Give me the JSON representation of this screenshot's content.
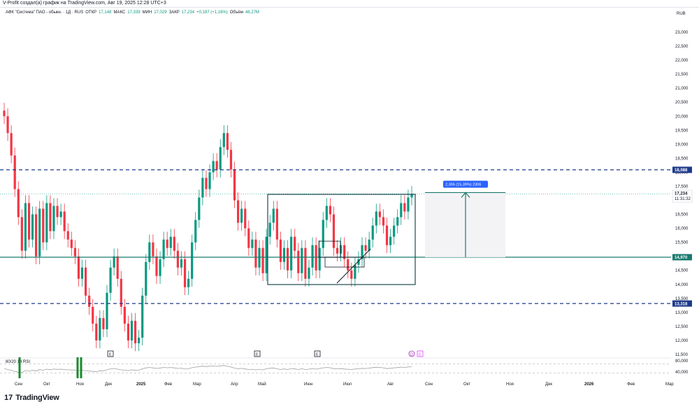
{
  "caption": "V-Profit создал(а) график на TradingView.com, Авг 19, 2025 12:28 UTC+3",
  "header": {
    "symbol": "АФК \"Система\" ПАО - обыкн. · 1Д · RUS",
    "open_label": "ОТКР",
    "open": "17,148",
    "high_label": "МАКС",
    "high": "17,339",
    "low_label": "МИН",
    "low": "17,029",
    "close_label": "ЗАКР",
    "close": "17,234",
    "change": "+0,197 (+1,16%)",
    "volume_label": "Объём",
    "volume": "48,27M"
  },
  "currency": "RUB",
  "rsi_label": "80/20 14 RSI",
  "footer": {
    "logo": "17",
    "brand": "TradingView"
  },
  "colors": {
    "up": "#089981",
    "down": "#f23645",
    "level": "#1e3a8a",
    "box": "#1d4a4f",
    "measure": "#2962ff"
  },
  "chart_data": {
    "type": "candlestick",
    "y_ticks": [
      "23,000",
      "22,500",
      "22,000",
      "21,500",
      "21,000",
      "20,500",
      "20,000",
      "19,500",
      "19,000",
      "18,500",
      "18,000",
      "17,500",
      "17,000",
      "16,500",
      "16,000",
      "15,500",
      "15,000",
      "14,500",
      "14,000",
      "13,500",
      "13,000",
      "12,500",
      "12,000",
      "11,500"
    ],
    "x_ticks": [
      "Сен",
      "Окт",
      "Ноя",
      "Дек",
      "2025",
      "Фев",
      "Мар",
      "Апр",
      "Май",
      "Июн",
      "Июл",
      "Авг",
      "Сен",
      "Окт",
      "Ноя",
      "Дек",
      "2026",
      "Фев",
      "Мар"
    ],
    "ylim": [
      11.5,
      23.5
    ],
    "levels": [
      {
        "label": "18,088",
        "value": 18.088,
        "style": "dashed"
      },
      {
        "label": "13,318",
        "value": 13.318,
        "style": "dashed"
      },
      {
        "label": "14,970",
        "value": 14.97,
        "style": "solid"
      }
    ],
    "last_price": {
      "label": "17,234",
      "countdown": "11:31:32",
      "value": 17.234
    },
    "measure_label": "2,306 (15,39%) 2306",
    "event_markers": [
      "E",
      "E",
      "E"
    ],
    "dividend_markers": [
      "D",
      "E"
    ],
    "rsi_ticks": [
      "80,000",
      "40,000"
    ],
    "closes": [
      20.0,
      19.4,
      18.6,
      17.4,
      16.4,
      15.2,
      16.9,
      15.6,
      16.5,
      15.0,
      16.7,
      15.5,
      16.9,
      15.9,
      16.8,
      16.4,
      16.6,
      15.9,
      15.6,
      15.3,
      15.0,
      14.2,
      14.6,
      13.6,
      13.2,
      12.6,
      12.0,
      12.8,
      12.4,
      13.7,
      14.6,
      15.0,
      14.2,
      13.2,
      12.6,
      12.0,
      12.7,
      11.9,
      12.1,
      13.6,
      14.8,
      15.5,
      15.0,
      14.3,
      14.9,
      15.6,
      15.3,
      15.7,
      15.2,
      14.6,
      14.9,
      13.9,
      14.2,
      15.5,
      16.3,
      17.1,
      17.8,
      17.4,
      18.0,
      18.4,
      18.1,
      18.9,
      19.4,
      18.8,
      18.1,
      17.0,
      16.2,
      16.7,
      16.0,
      15.3,
      15.6,
      14.6,
      15.3,
      14.4,
      15.7,
      16.2,
      16.7,
      15.6,
      14.8,
      15.3,
      14.5,
      15.7,
      15.2,
      14.4,
      15.3,
      14.2,
      14.6,
      15.4,
      14.5,
      15.3,
      16.3,
      16.8,
      16.5,
      15.3,
      15.1,
      15.4,
      14.9,
      14.5,
      14.2,
      14.7,
      14.9,
      15.4,
      15.2,
      15.6,
      16.1,
      16.6,
      16.4,
      16.1,
      15.4,
      15.7,
      16.1,
      16.4,
      16.9,
      16.6,
      17.1,
      17.234
    ]
  }
}
